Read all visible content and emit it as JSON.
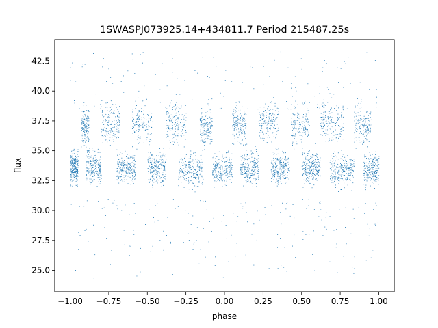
{
  "chart_data": {
    "type": "scatter",
    "title": "1SWASPJ073925.14+434811.7 Period 215487.25s",
    "xlabel": "phase",
    "ylabel": "flux",
    "xlim": [
      -1.1,
      1.1
    ],
    "ylim": [
      23.2,
      44.3
    ],
    "xticks": [
      -1.0,
      -0.75,
      -0.5,
      -0.25,
      0.0,
      0.25,
      0.5,
      0.75,
      1.0
    ],
    "xtick_labels": [
      "−1.00",
      "−0.75",
      "−0.50",
      "−0.25",
      "0.00",
      "0.25",
      "0.50",
      "0.75",
      "1.00"
    ],
    "yticks": [
      25.0,
      27.5,
      30.0,
      32.5,
      35.0,
      37.5,
      40.0,
      42.5
    ],
    "ytick_labels": [
      "25.0",
      "27.5",
      "30.0",
      "32.5",
      "35.0",
      "37.5",
      "40.0",
      "42.5"
    ],
    "grid": false,
    "point_color": "#1f77b4",
    "series": [
      {
        "x_range": [
          -1.0,
          1.0
        ],
        "clusters": [
          {
            "x": [
              -1.0,
              -0.95
            ],
            "y_center": 33.6,
            "y_spread": 1.2
          },
          {
            "x": [
              -0.93,
              -0.88
            ],
            "y_center": 37.0,
            "y_spread": 1.4
          },
          {
            "x": [
              -0.9,
              -0.8
            ],
            "y_center": 33.6,
            "y_spread": 1.2
          },
          {
            "x": [
              -0.8,
              -0.68
            ],
            "y_center": 37.3,
            "y_spread": 1.4
          },
          {
            "x": [
              -0.7,
              -0.58
            ],
            "y_center": 33.6,
            "y_spread": 1.2
          },
          {
            "x": [
              -0.6,
              -0.47
            ],
            "y_center": 37.2,
            "y_spread": 1.4
          },
          {
            "x": [
              -0.5,
              -0.38
            ],
            "y_center": 33.6,
            "y_spread": 1.2
          },
          {
            "x": [
              -0.38,
              -0.25
            ],
            "y_center": 37.4,
            "y_spread": 1.5
          },
          {
            "x": [
              -0.3,
              -0.14
            ],
            "y_center": 33.4,
            "y_spread": 1.3
          },
          {
            "x": [
              -0.16,
              -0.08
            ],
            "y_center": 37.0,
            "y_spread": 1.3
          },
          {
            "x": [
              -0.08,
              0.05
            ],
            "y_center": 33.5,
            "y_spread": 1.2
          },
          {
            "x": [
              0.05,
              0.14
            ],
            "y_center": 37.2,
            "y_spread": 1.4
          },
          {
            "x": [
              0.1,
              0.22
            ],
            "y_center": 33.6,
            "y_spread": 1.2
          },
          {
            "x": [
              0.22,
              0.35
            ],
            "y_center": 37.4,
            "y_spread": 1.4
          },
          {
            "x": [
              0.3,
              0.42
            ],
            "y_center": 33.6,
            "y_spread": 1.2
          },
          {
            "x": [
              0.43,
              0.55
            ],
            "y_center": 37.3,
            "y_spread": 1.4
          },
          {
            "x": [
              0.5,
              0.62
            ],
            "y_center": 33.6,
            "y_spread": 1.2
          },
          {
            "x": [
              0.62,
              0.77
            ],
            "y_center": 37.4,
            "y_spread": 1.5
          },
          {
            "x": [
              0.68,
              0.84
            ],
            "y_center": 33.4,
            "y_spread": 1.3
          },
          {
            "x": [
              0.84,
              0.95
            ],
            "y_center": 37.1,
            "y_spread": 1.4
          },
          {
            "x": [
              0.9,
              1.0
            ],
            "y_center": 33.5,
            "y_spread": 1.2
          }
        ],
        "outlier_low_range": [
          24.0,
          31.0
        ],
        "outlier_high_range": [
          38.5,
          43.3
        ]
      }
    ]
  }
}
